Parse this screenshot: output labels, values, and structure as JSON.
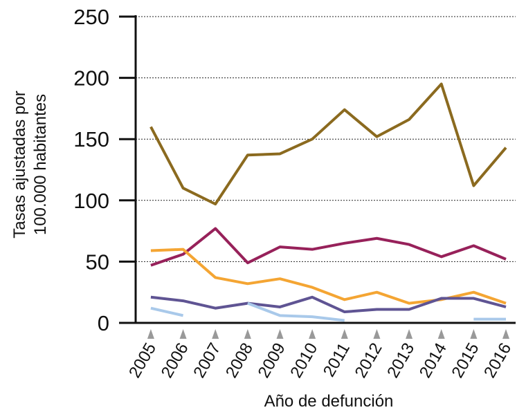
{
  "chart_data": {
    "type": "line",
    "x": [
      2005,
      2006,
      2007,
      2008,
      2009,
      2010,
      2011,
      2012,
      2013,
      2014,
      2015,
      2016
    ],
    "series": [
      {
        "color": "#8b6a1f",
        "values": [
          160,
          110,
          97,
          137,
          138,
          150,
          174,
          152,
          166,
          195,
          112,
          143
        ]
      },
      {
        "color": "#97215a",
        "values": [
          47,
          56,
          77,
          49,
          62,
          60,
          65,
          69,
          64,
          54,
          63,
          52
        ]
      },
      {
        "color": "#f4a533",
        "values": [
          59,
          60,
          37,
          32,
          36,
          29,
          19,
          25,
          16,
          19,
          25,
          16
        ]
      },
      {
        "color": "#5f5493",
        "values": [
          21,
          18,
          12,
          16,
          13,
          21,
          9,
          11,
          11,
          20,
          20,
          13
        ]
      },
      {
        "color": "#a9c9ea",
        "values": [
          12,
          6,
          null,
          16,
          6,
          5,
          2,
          null,
          null,
          null,
          3,
          3
        ]
      }
    ],
    "xlim": [
      2004.53,
      2016.3
    ],
    "ylim": [
      0,
      250
    ],
    "yticks": [
      0,
      50,
      100,
      150,
      200,
      250
    ],
    "xlabel": "Año de defunción",
    "ylabel": [
      "Tasas ajustadas por",
      "100.000 habitantes"
    ],
    "grid": true
  }
}
